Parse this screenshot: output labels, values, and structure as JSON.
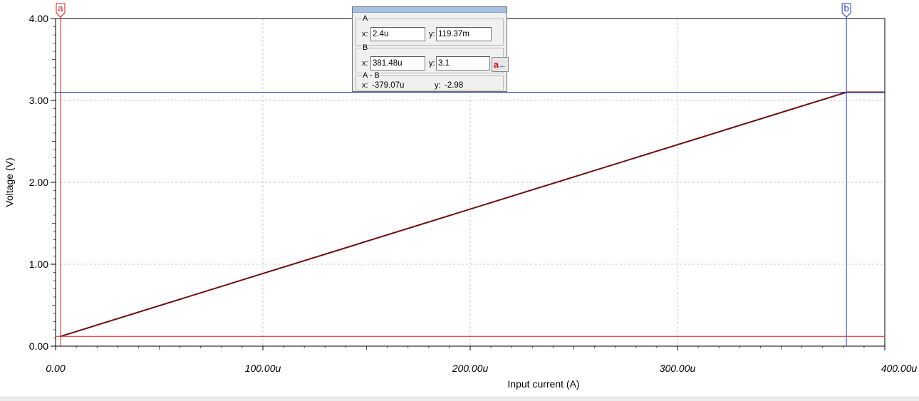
{
  "chart_data": {
    "type": "line",
    "xlabel": "Input current (A)",
    "ylabel": "Voltage (V)",
    "xlim": [
      0,
      0.0004
    ],
    "ylim": [
      0,
      4
    ],
    "x_ticks": [
      {
        "value": 0,
        "label": "0.00"
      },
      {
        "value": 0.0001,
        "label": "100.00u"
      },
      {
        "value": 0.0002,
        "label": "200.00u"
      },
      {
        "value": 0.0003,
        "label": "300.00u"
      },
      {
        "value": 0.0004,
        "label": "400.00u"
      }
    ],
    "y_ticks": [
      {
        "value": 0,
        "label": "0.00"
      },
      {
        "value": 1,
        "label": "1.00"
      },
      {
        "value": 2,
        "label": "2.00"
      },
      {
        "value": 3,
        "label": "3.00"
      },
      {
        "value": 4,
        "label": "4.00"
      }
    ],
    "grid": true,
    "series": [
      {
        "color": "#6b0f0f",
        "x": [
          2.4e-06,
          0.00038148,
          0.0004
        ],
        "y": [
          0.11937,
          3.1,
          3.1
        ]
      }
    ],
    "cursors": [
      {
        "id": "a",
        "label": "a",
        "x": 2.4e-06,
        "y": 0.11937,
        "color": "#d42020"
      },
      {
        "id": "b",
        "label": "b",
        "x": 0.00038148,
        "y": 3.1,
        "color": "#2a3eb1"
      }
    ]
  },
  "cursor_panel": {
    "group_a": {
      "label": "A",
      "x_label": "x:",
      "x_value": "2.4u",
      "y_label": "y:",
      "y_value": "119.37m"
    },
    "group_b": {
      "label": "B",
      "x_label": "x:",
      "x_value": "381.48u",
      "y_label": "y:",
      "y_value": "3.1"
    },
    "group_diff": {
      "label": "A - B",
      "x_label": "x:",
      "x_value": "-379.07u",
      "y_label": "y:",
      "y_value": "-2.98"
    },
    "swap_button": {
      "letter": "a",
      "arrow": "←",
      "icon": "arrow-left-icon"
    }
  }
}
